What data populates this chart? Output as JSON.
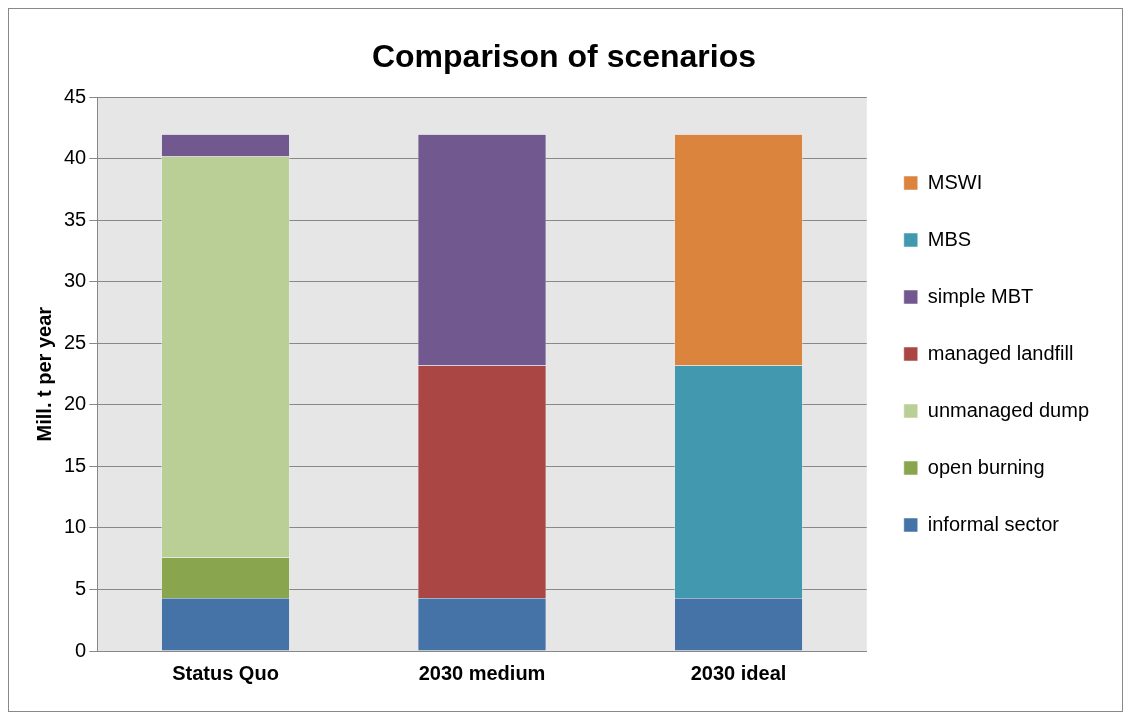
{
  "chart_data": {
    "type": "bar",
    "title": "Comparison of scenarios",
    "ylabel": "Mill. t per year",
    "categories": [
      "Status Quo",
      "2030 medium",
      "2030 ideal"
    ],
    "series": [
      {
        "name": "informal sector",
        "color": "#4572a7",
        "values": [
          4.3,
          4.3,
          4.3
        ]
      },
      {
        "name": "open burning",
        "color": "#89a54e",
        "values": [
          3.3,
          null,
          null
        ]
      },
      {
        "name": "unmanaged dump",
        "color": "#b9cf96",
        "values": [
          32.6,
          null,
          null
        ]
      },
      {
        "name": "managed landfill",
        "color": "#aa4643",
        "values": [
          null,
          18.9,
          null
        ]
      },
      {
        "name": "simple MBT",
        "color": "#71588f",
        "values": [
          1.8,
          18.8,
          null
        ]
      },
      {
        "name": "MBS",
        "color": "#4198af",
        "values": [
          null,
          null,
          18.9
        ]
      },
      {
        "name": "MSWI",
        "color": "#db843d",
        "values": [
          null,
          null,
          18.8
        ]
      }
    ],
    "stacked": true,
    "ylim": [
      0,
      45
    ],
    "yticks": [
      0,
      5,
      10,
      15,
      20,
      25,
      30,
      35,
      40,
      45
    ],
    "grid": "y",
    "legend": "right"
  }
}
